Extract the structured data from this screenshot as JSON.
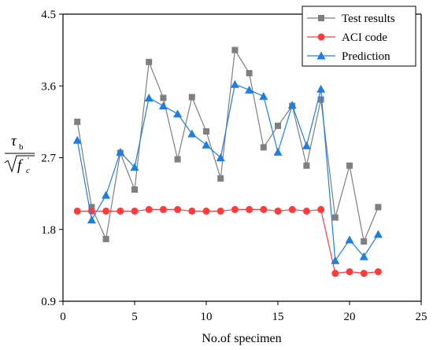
{
  "chart_data": {
    "type": "line",
    "xlabel": "No.of specimen",
    "ylabel_symbol": "τ",
    "ylabel_sub": "b",
    "ylabel_den": "f",
    "ylabel_den_sub": "c",
    "ylabel_den_sup": "'",
    "xlim": [
      0,
      25
    ],
    "ylim": [
      0.9,
      4.5
    ],
    "xticks": [
      0,
      5,
      10,
      15,
      20,
      25
    ],
    "yticks": [
      0.9,
      1.8,
      2.7,
      3.6,
      4.5
    ],
    "ytick_labels": [
      "0.9",
      "1.8",
      "2.7",
      "3.6",
      "4.5"
    ],
    "legend_position": "top-right",
    "x": [
      1,
      2,
      3,
      4,
      5,
      6,
      7,
      8,
      9,
      10,
      11,
      12,
      13,
      14,
      15,
      16,
      17,
      18,
      19,
      20,
      21,
      22
    ],
    "series": [
      {
        "name": "Test results",
        "marker": "square",
        "color": "#7f7f7f",
        "values": [
          3.15,
          2.08,
          1.68,
          2.76,
          2.3,
          3.9,
          3.45,
          2.68,
          3.46,
          3.03,
          2.44,
          4.05,
          3.76,
          2.83,
          3.1,
          3.35,
          2.6,
          3.43,
          1.95,
          2.6,
          1.65,
          2.08
        ]
      },
      {
        "name": "ACI code",
        "marker": "circle",
        "color": "#ff3b3b",
        "values": [
          2.03,
          2.03,
          2.03,
          2.03,
          2.03,
          2.05,
          2.05,
          2.05,
          2.03,
          2.03,
          2.03,
          2.05,
          2.05,
          2.05,
          2.03,
          2.05,
          2.03,
          2.05,
          1.25,
          1.27,
          1.25,
          1.27
        ]
      },
      {
        "name": "Prediction",
        "marker": "triangle",
        "color": "#1f7fe0",
        "values": [
          2.92,
          1.92,
          2.23,
          2.77,
          2.58,
          3.45,
          3.35,
          3.25,
          3.0,
          2.86,
          2.7,
          3.62,
          3.55,
          3.47,
          2.77,
          3.36,
          2.85,
          3.56,
          1.41,
          1.67,
          1.46,
          1.74
        ]
      }
    ]
  }
}
